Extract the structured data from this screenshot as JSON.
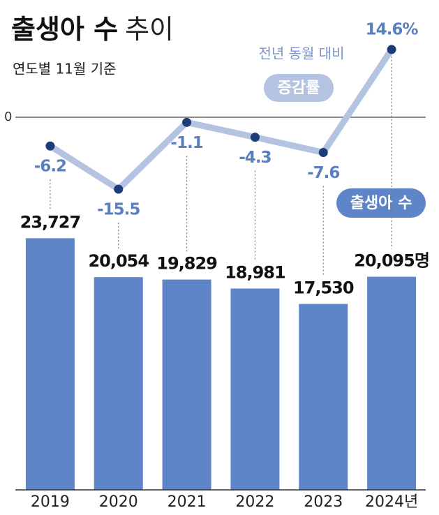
{
  "chart_data": {
    "type": "bar",
    "title_bold": "출생아 수",
    "title_light": "추이",
    "subtitle": "연도별 11월 기준",
    "categories": [
      "2019",
      "2020",
      "2021",
      "2022",
      "2023",
      "2024년"
    ],
    "ylim": [
      0,
      25000
    ],
    "y2lim": [
      -20,
      20
    ],
    "y2ticks": [
      0
    ],
    "line_caption": "전년 동월 대비",
    "series": [
      {
        "name": "출생아 수",
        "color": "#5f85c9",
        "values": [
          23727,
          20054,
          19829,
          18981,
          17530,
          20095
        ],
        "value_labels": [
          "23,727",
          "20,054",
          "19,829",
          "18,981",
          "17,530",
          "20,095명"
        ]
      },
      {
        "name": "증감률",
        "type": "line",
        "axis": "y2",
        "color": "#b3c3e0",
        "values": [
          -6.2,
          -15.5,
          -1.1,
          -4.3,
          -7.6,
          14.6
        ],
        "value_labels": [
          "-6.2",
          "-15.5",
          "-1.1",
          "-4.3",
          "-7.6",
          "14.6%"
        ]
      }
    ]
  }
}
